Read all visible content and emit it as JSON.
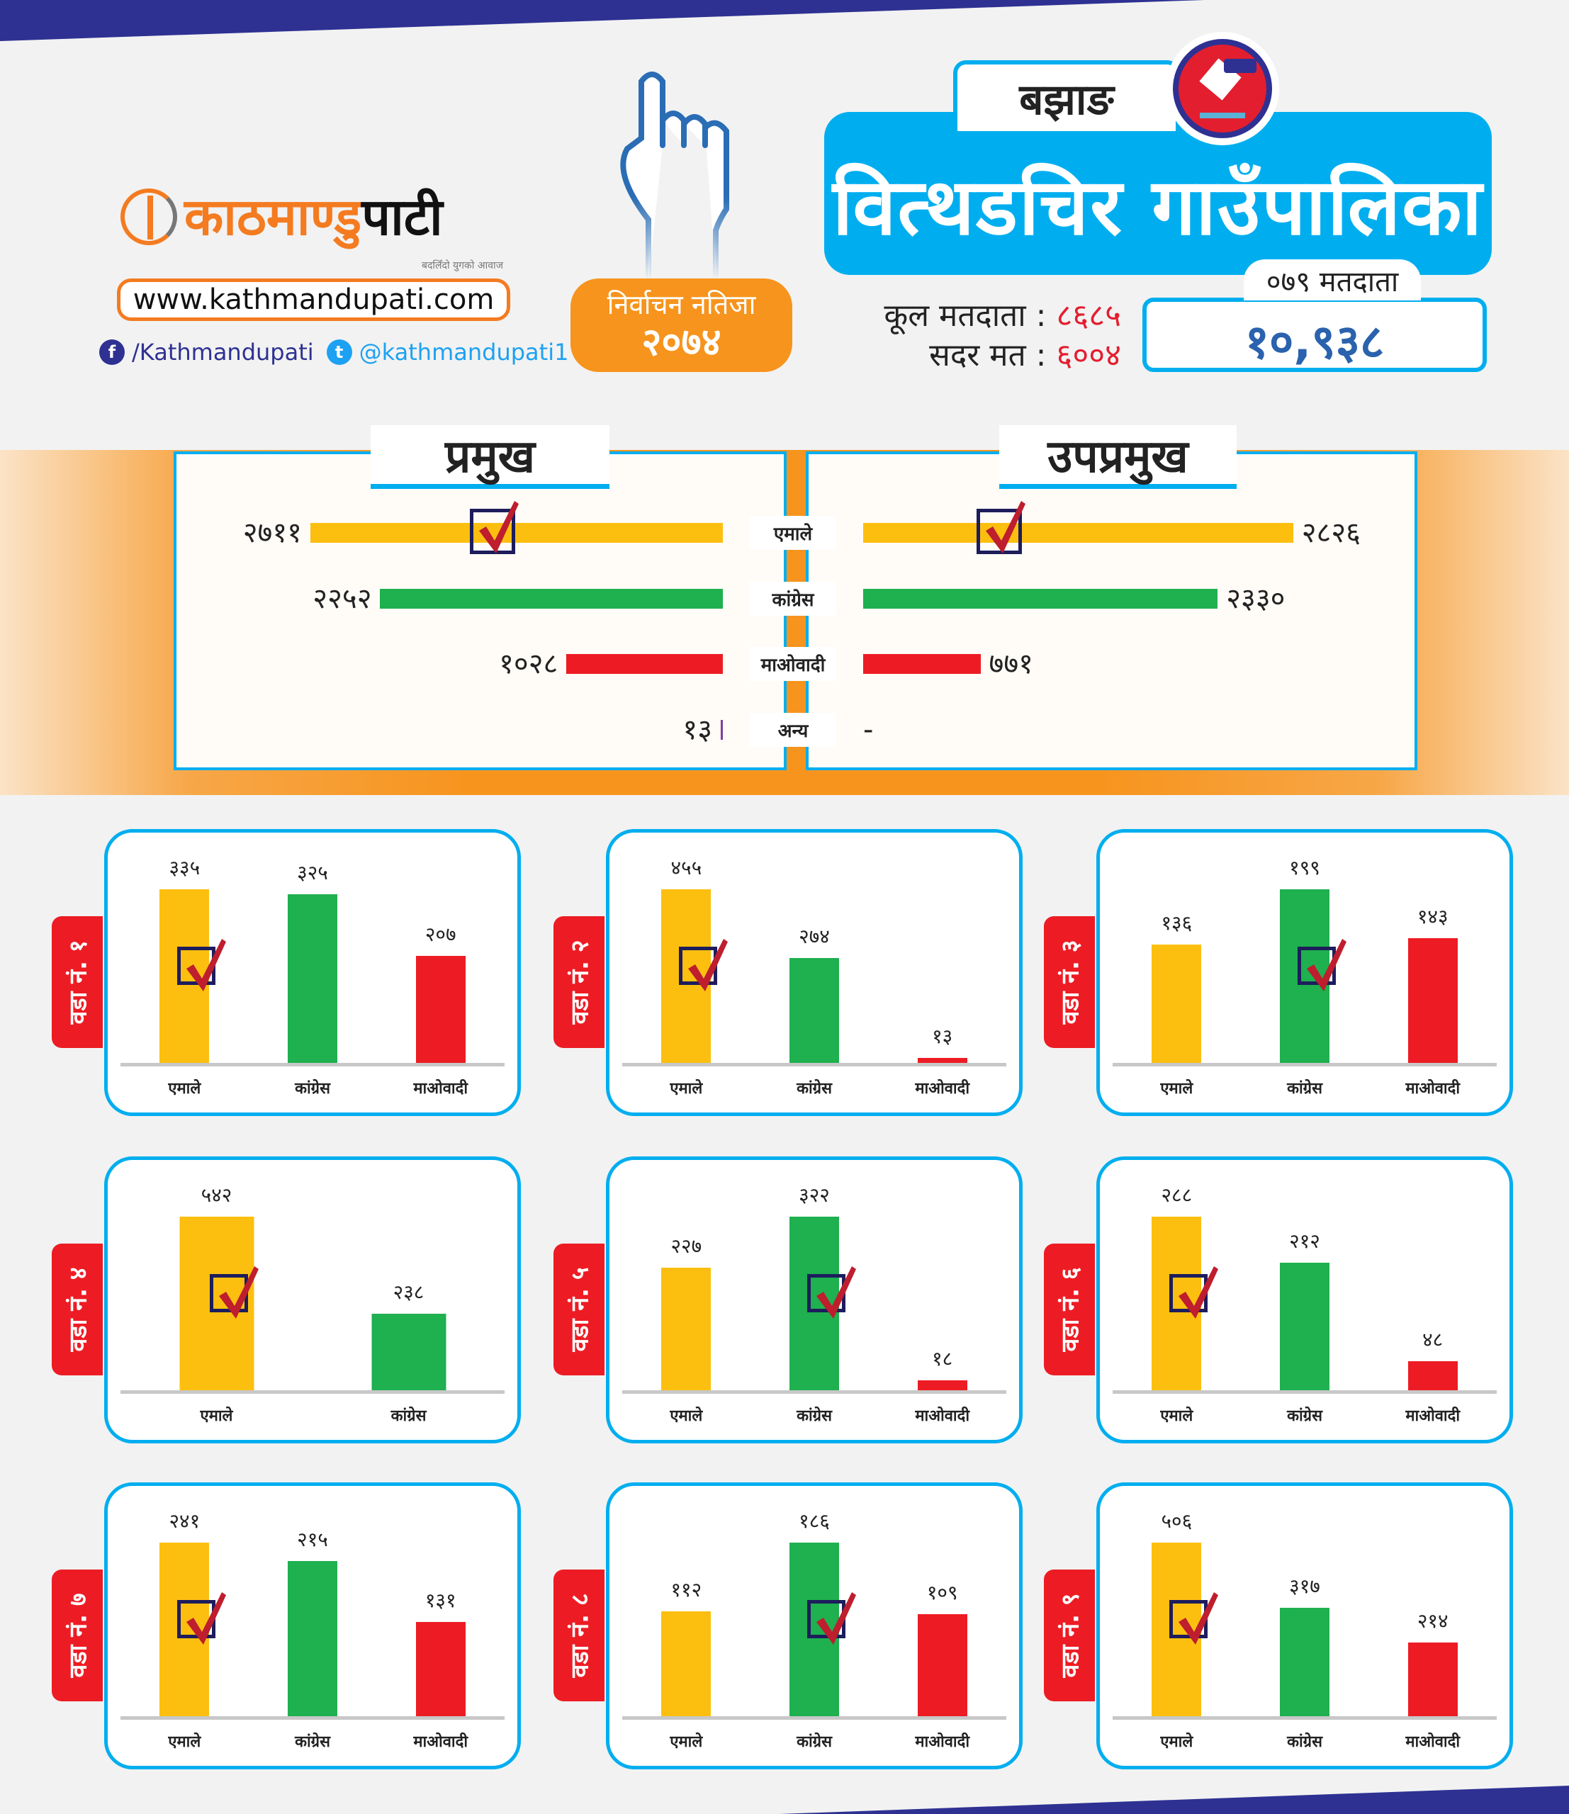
{
  "brand": {
    "name_part1": "काठमाण्डु",
    "name_part2": "पाटी",
    "tagline": "बदलिँदो युगको आवाज",
    "url": "www.kathmandupati.com",
    "facebook": "/Kathmandupati",
    "twitter": "@kathmandupati1"
  },
  "badge": {
    "line1": "निर्वाचन नतिजा",
    "line2": "२०७४"
  },
  "header": {
    "district": "बझाङ",
    "municipality": "वित्थडचिर गाउँपालिका"
  },
  "stats": {
    "total_voters_label": "कूल मतदाता :",
    "total_voters": "८६८५",
    "valid_votes_label": "सदर मत :",
    "valid_votes": "६००४"
  },
  "voters_079": {
    "label": "०७९ मतदाता",
    "value": "१०,९३८"
  },
  "colors": {
    "uml": "#fcbf10",
    "congress": "#1fb04f",
    "maoist": "#ed1c24",
    "accent": "#00aeef",
    "orange": "#f7941d"
  },
  "parties": [
    "एमाले",
    "कांग्रेस",
    "माओवादी",
    "अन्य"
  ],
  "ward_prefix": "वडा नं.",
  "chart_data": [
    {
      "type": "bar",
      "orientation": "horizontal",
      "title": "प्रमुख",
      "categories": [
        "एमाले",
        "कांग्रेस",
        "माओवादी",
        "अन्य"
      ],
      "values": [
        2711,
        2252,
        1028,
        13
      ],
      "value_labels": [
        "२७११",
        "२२५२",
        "१०२८",
        "१३"
      ],
      "winner": 0
    },
    {
      "type": "bar",
      "orientation": "horizontal",
      "title": "उपप्रमुख",
      "categories": [
        "एमाले",
        "कांग्रेस",
        "माओवादी",
        "अन्य"
      ],
      "values": [
        2826,
        2330,
        771,
        null
      ],
      "value_labels": [
        "२८२६",
        "२३३०",
        "७७१",
        "-"
      ],
      "winner": 0
    },
    {
      "type": "bar",
      "title": "वडा नं. १",
      "ward": "१",
      "categories": [
        "एमाले",
        "कांग्रेस",
        "माओवादी"
      ],
      "values": [
        335,
        325,
        207
      ],
      "value_labels": [
        "३३५",
        "३२५",
        "२०७"
      ],
      "winner": 0
    },
    {
      "type": "bar",
      "title": "वडा नं. २",
      "ward": "२",
      "categories": [
        "एमाले",
        "कांग्रेस",
        "माओवादी"
      ],
      "values": [
        455,
        274,
        13
      ],
      "value_labels": [
        "४५५",
        "२७४",
        "१३"
      ],
      "winner": 0
    },
    {
      "type": "bar",
      "title": "वडा नं. ३",
      "ward": "३",
      "categories": [
        "एमाले",
        "कांग्रेस",
        "माओवादी"
      ],
      "values": [
        136,
        199,
        143
      ],
      "value_labels": [
        "१३६",
        "१९९",
        "१४३"
      ],
      "winner": 1
    },
    {
      "type": "bar",
      "title": "वडा नं. ४",
      "ward": "४",
      "categories": [
        "एमाले",
        "कांग्रेस"
      ],
      "values": [
        542,
        238
      ],
      "value_labels": [
        "५४२",
        "२३८"
      ],
      "winner": 0
    },
    {
      "type": "bar",
      "title": "वडा नं. ५",
      "ward": "५",
      "categories": [
        "एमाले",
        "कांग्रेस",
        "माओवादी"
      ],
      "values": [
        227,
        322,
        18
      ],
      "value_labels": [
        "२२७",
        "३२२",
        "१८"
      ],
      "winner": 1
    },
    {
      "type": "bar",
      "title": "वडा नं. ६",
      "ward": "६",
      "categories": [
        "एमाले",
        "कांग्रेस",
        "माओवादी"
      ],
      "values": [
        288,
        212,
        48
      ],
      "value_labels": [
        "२८८",
        "२१२",
        "४८"
      ],
      "winner": 0
    },
    {
      "type": "bar",
      "title": "वडा नं. ७",
      "ward": "७",
      "categories": [
        "एमाले",
        "कांग्रेस",
        "माओवादी"
      ],
      "values": [
        241,
        215,
        131
      ],
      "value_labels": [
        "२४१",
        "२१५",
        "१३१"
      ],
      "winner": 0
    },
    {
      "type": "bar",
      "title": "वडा नं. ८",
      "ward": "८",
      "categories": [
        "एमाले",
        "कांग्रेस",
        "माओवादी"
      ],
      "values": [
        112,
        186,
        109
      ],
      "value_labels": [
        "११२",
        "१८६",
        "१०९"
      ],
      "winner": 1
    },
    {
      "type": "bar",
      "title": "वडा नं. ९",
      "ward": "९",
      "categories": [
        "एमाले",
        "कांग्रेस",
        "माओवादी"
      ],
      "values": [
        506,
        317,
        214
      ],
      "value_labels": [
        "५०६",
        "३१७",
        "२१४"
      ],
      "winner": 0
    }
  ]
}
